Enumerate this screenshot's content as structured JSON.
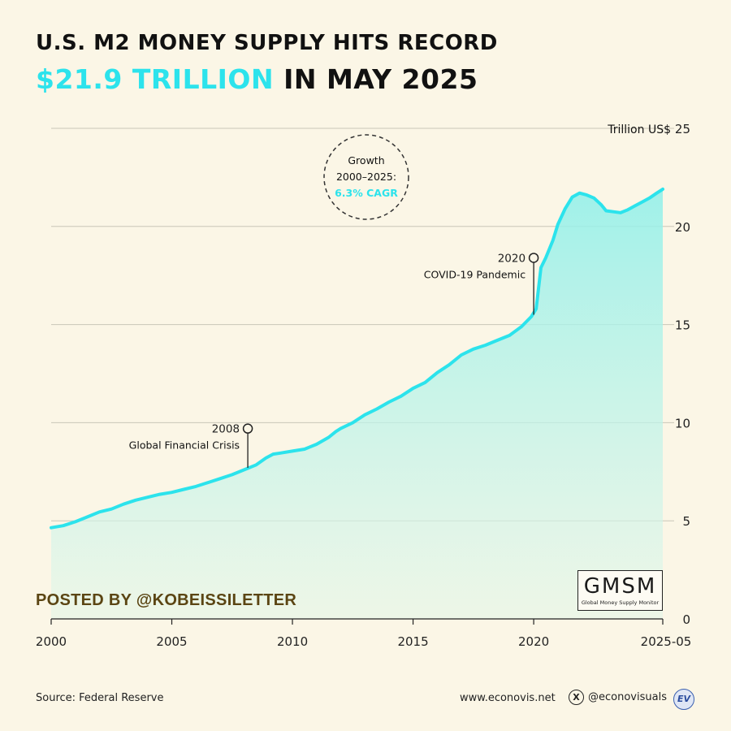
{
  "header": {
    "title_line1": "U.S. M2 MONEY SUPPLY HITS RECORD",
    "title_highlight": "$21.9 TRILLION",
    "title_rest": " IN MAY 2025"
  },
  "colors": {
    "accent": "#2ce3ec",
    "background": "#fbf6e6",
    "posted": "#5b4513"
  },
  "chart_data": {
    "type": "area",
    "ylabel": "Trillion US$",
    "ylim": [
      0,
      25
    ],
    "yticks": [
      0,
      5,
      10,
      15,
      20,
      25
    ],
    "xlim": [
      2000,
      2025.35
    ],
    "xticks": [
      {
        "value": 2000,
        "label": "2000"
      },
      {
        "value": 2005,
        "label": "2005"
      },
      {
        "value": 2010,
        "label": "2010"
      },
      {
        "value": 2015,
        "label": "2015"
      },
      {
        "value": 2020,
        "label": "2020"
      },
      {
        "value": 2025.35,
        "label": "2025-05"
      }
    ],
    "grid": true,
    "series": [
      {
        "x": [
          2000,
          2000.5,
          2001,
          2001.5,
          2002,
          2002.5,
          2003,
          2003.5,
          2004,
          2004.5,
          2005,
          2005.5,
          2006,
          2006.5,
          2007,
          2007.5,
          2008,
          2008.5,
          2008.9,
          2009.2,
          2009.5,
          2010,
          2010.5,
          2011,
          2011.5,
          2011.8,
          2012,
          2012.5,
          2013,
          2013.5,
          2014,
          2014.5,
          2015,
          2015.5,
          2016,
          2016.5,
          2017,
          2017.5,
          2018,
          2018.5,
          2019,
          2019.5,
          2019.9,
          2020.1,
          2020.3,
          2020.5,
          2020.8,
          2021,
          2021.3,
          2021.6,
          2021.9,
          2022.2,
          2022.5,
          2022.8,
          2023,
          2023.3,
          2023.6,
          2023.9,
          2024.2,
          2024.5,
          2024.8,
          2025.1,
          2025.35
        ],
        "values": [
          4.65,
          4.75,
          4.95,
          5.2,
          5.45,
          5.6,
          5.85,
          6.05,
          6.2,
          6.35,
          6.45,
          6.6,
          6.75,
          6.95,
          7.15,
          7.35,
          7.6,
          7.85,
          8.2,
          8.4,
          8.45,
          8.55,
          8.65,
          8.9,
          9.25,
          9.55,
          9.7,
          10.0,
          10.4,
          10.7,
          11.05,
          11.35,
          11.75,
          12.05,
          12.55,
          12.95,
          13.45,
          13.75,
          13.95,
          14.2,
          14.45,
          14.9,
          15.4,
          15.8,
          17.9,
          18.4,
          19.3,
          20.1,
          20.9,
          21.5,
          21.7,
          21.6,
          21.45,
          21.1,
          20.8,
          20.75,
          20.7,
          20.85,
          21.05,
          21.25,
          21.45,
          21.7,
          21.9
        ]
      }
    ],
    "annotations": [
      {
        "year": "2008",
        "label": "Global Financial Crisis",
        "x": 2008.15,
        "y": 7.7,
        "yTop": 9.7
      },
      {
        "year": "2020",
        "label": "COVID-19 Pandemic",
        "x": 2020.0,
        "y": 15.5,
        "yTop": 18.4
      }
    ],
    "callout": {
      "line1": "Growth",
      "line2": "2000–2025:",
      "line3": "6.3% CAGR"
    }
  },
  "watermark": "POSTED BY @KOBEISSILETTER",
  "badge": {
    "main": "GMSM",
    "sub": "Global Money Supply Monitor"
  },
  "footer": {
    "source": "Source: Federal Reserve",
    "website": "www.econovis.net",
    "x_glyph": "X",
    "handle": "@econovisuals",
    "logo": "EV"
  }
}
